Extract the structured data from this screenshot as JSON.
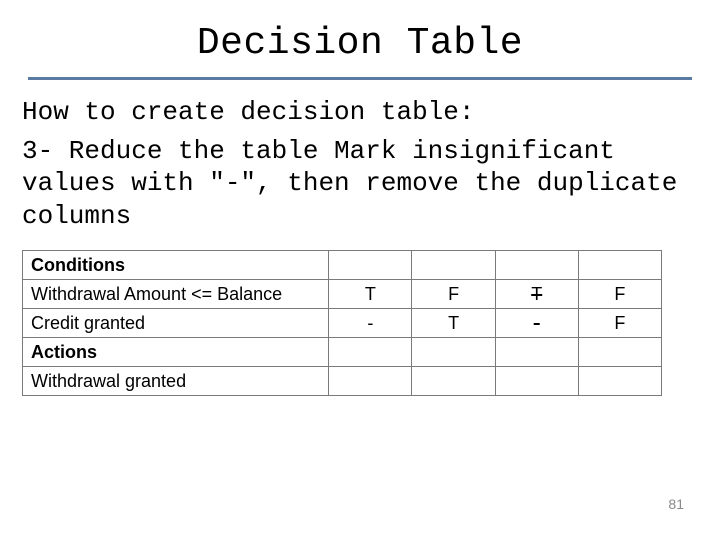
{
  "title": "Decision Table",
  "subtitle": "How to create decision table:",
  "step_text": "3- Reduce the table Mark insignificant values with \"-\", then remove the duplicate columns",
  "colors": {
    "hr": "#5b7ba3",
    "page_num": "#8a8a8a",
    "text": "#000000",
    "border": "#7a7a7a",
    "background": "#ffffff"
  },
  "table": {
    "sections": {
      "conditions_label": "Conditions",
      "actions_label": "Actions"
    },
    "condition_rows": [
      {
        "label": "Withdrawal Amount <= Balance",
        "cells": [
          {
            "value": "T",
            "strike": false
          },
          {
            "value": "F",
            "strike": false
          },
          {
            "value": "T",
            "strike": true
          },
          {
            "value": "F",
            "strike": false
          }
        ]
      },
      {
        "label": "Credit granted",
        "cells": [
          {
            "value": "-",
            "strike": false
          },
          {
            "value": "T",
            "strike": false
          },
          {
            "value": "-",
            "strike": true
          },
          {
            "value": "F",
            "strike": false
          }
        ]
      }
    ],
    "action_rows": [
      {
        "label": "Withdrawal granted",
        "cells": [
          {
            "value": "",
            "strike": false
          },
          {
            "value": "",
            "strike": false
          },
          {
            "value": "",
            "strike": false
          },
          {
            "value": "",
            "strike": false
          }
        ]
      }
    ]
  },
  "page_number": "81"
}
